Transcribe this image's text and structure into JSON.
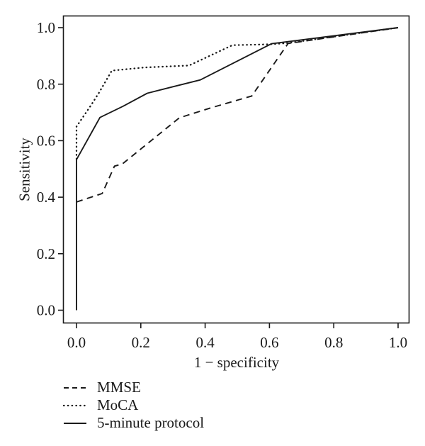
{
  "figure": {
    "background": "#ffffff",
    "ink": "#1a1a1a"
  },
  "chart_data": {
    "type": "line",
    "title": "",
    "xlabel": "1 − specificity",
    "ylabel": "Sensitivity",
    "xlim": [
      0.0,
      1.0
    ],
    "ylim": [
      0.0,
      1.0
    ],
    "xticks": [
      0.0,
      0.2,
      0.4,
      0.6,
      0.8,
      1.0
    ],
    "yticks": [
      0.0,
      0.2,
      0.4,
      0.6,
      0.8,
      1.0
    ],
    "grid": false,
    "legend_position": "bottom-left",
    "series": [
      {
        "name": "MMSE",
        "style": "dashed",
        "color": "#1a1a1a",
        "points": [
          [
            0,
            0.383
          ],
          [
            0.08,
            0.413
          ],
          [
            0.118,
            0.51
          ],
          [
            0.143,
            0.518
          ],
          [
            0.32,
            0.681
          ],
          [
            0.42,
            0.717
          ],
          [
            0.545,
            0.758
          ],
          [
            0.658,
            0.944
          ],
          [
            1.0,
            1.0
          ]
        ]
      },
      {
        "name": "MoCA",
        "style": "dotted",
        "color": "#1a1a1a",
        "points": [
          [
            0,
            0.535
          ],
          [
            0,
            0.65
          ],
          [
            0.045,
            0.725
          ],
          [
            0.07,
            0.77
          ],
          [
            0.11,
            0.848
          ],
          [
            0.21,
            0.859
          ],
          [
            0.35,
            0.866
          ],
          [
            0.485,
            0.938
          ],
          [
            0.6,
            0.941
          ],
          [
            0.655,
            0.945
          ],
          [
            1.0,
            1.0
          ]
        ]
      },
      {
        "name": "5-minute protocol",
        "style": "solid",
        "color": "#1a1a1a",
        "points": [
          [
            0,
            0
          ],
          [
            0,
            0.533
          ],
          [
            0.073,
            0.682
          ],
          [
            0.145,
            0.722
          ],
          [
            0.22,
            0.768
          ],
          [
            0.3,
            0.791
          ],
          [
            0.385,
            0.815
          ],
          [
            0.606,
            0.943
          ],
          [
            1.0,
            1.0
          ]
        ]
      }
    ]
  }
}
